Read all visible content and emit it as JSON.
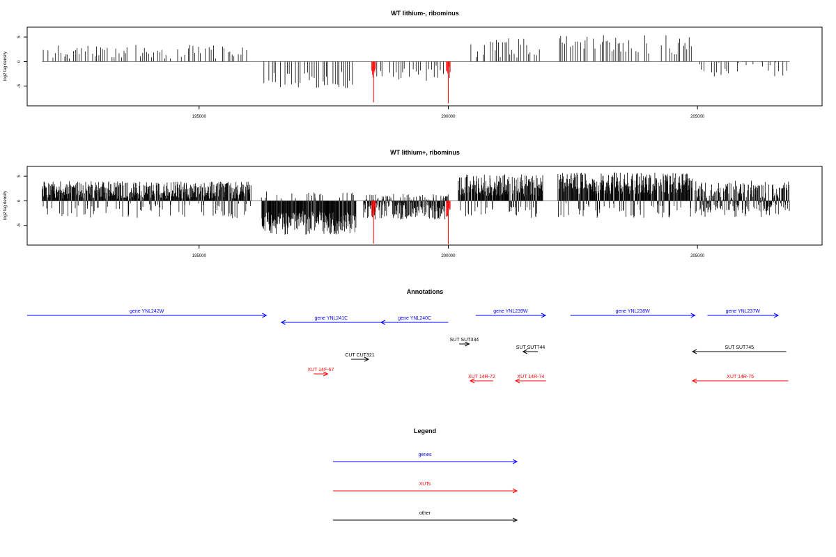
{
  "chart_data": [
    {
      "type": "bar",
      "title": "WT lithium-, ribominus",
      "ylabel": "log2 tag density",
      "xlabel": "",
      "xlim": [
        191550,
        207500
      ],
      "ylim": [
        -9,
        7
      ],
      "x_ticks": [
        195000,
        200000,
        205000
      ],
      "y_ticks": [
        5,
        0,
        -5
      ],
      "series_color": "#000000",
      "highlight_color": "#ff0000",
      "density": "sparse",
      "segments": [
        {
          "start": 191850,
          "end": 196050,
          "mean": 2.0,
          "amp": 1.4
        },
        {
          "start": 196300,
          "end": 198100,
          "mean": -3.6,
          "amp": 1.8
        },
        {
          "start": 198500,
          "end": 200000,
          "mean": -2.4,
          "amp": 1.6
        },
        {
          "start": 200400,
          "end": 201900,
          "mean": 2.8,
          "amp": 2.0
        },
        {
          "start": 202200,
          "end": 204900,
          "mean": 3.4,
          "amp": 2.0
        },
        {
          "start": 205000,
          "end": 206800,
          "mean": -1.5,
          "amp": 1.6
        }
      ],
      "red_bars": [
        {
          "x": 198500,
          "y": -8.3
        },
        {
          "x": 200000,
          "y": -8.5
        }
      ]
    },
    {
      "type": "bar",
      "title": "WT lithium+, ribominus",
      "ylabel": "log2 tag density",
      "xlabel": "",
      "xlim": [
        191550,
        207500
      ],
      "ylim": [
        -9,
        7
      ],
      "x_ticks": [
        195000,
        200000,
        205000
      ],
      "y_ticks": [
        5,
        0,
        -5
      ],
      "series_color": "#000000",
      "highlight_color": "#ff0000",
      "density": "dense",
      "segments": [
        {
          "start": 191850,
          "end": 196050,
          "mean": 2.2,
          "amp": 1.8
        },
        {
          "start": 196250,
          "end": 198150,
          "mean": -4.5,
          "amp": 2.4
        },
        {
          "start": 198300,
          "end": 200000,
          "mean": -1.2,
          "amp": 2.6
        },
        {
          "start": 200200,
          "end": 201900,
          "mean": 3.0,
          "amp": 2.4
        },
        {
          "start": 202200,
          "end": 204900,
          "mean": 3.6,
          "amp": 2.2
        },
        {
          "start": 204950,
          "end": 206850,
          "mean": 1.0,
          "amp": 3.2
        }
      ],
      "red_bars": [
        {
          "x": 198500,
          "y": -8.7
        },
        {
          "x": 200000,
          "y": -8.8
        }
      ]
    }
  ],
  "annotations": {
    "title": "Annotations",
    "items": [
      {
        "label": "gene YNL242W",
        "start": 191550,
        "end": 196350,
        "dir": "right",
        "color": "#0000ff",
        "row": 0
      },
      {
        "label": "gene YNL241C",
        "start": 196650,
        "end": 198650,
        "dir": "left",
        "color": "#0000ff",
        "row": 1
      },
      {
        "label": "gene YNL240C",
        "start": 198650,
        "end": 200000,
        "dir": "left",
        "color": "#0000ff",
        "row": 1
      },
      {
        "label": "gene YNL239W",
        "start": 200550,
        "end": 201950,
        "dir": "right",
        "color": "#0000ff",
        "row": 0
      },
      {
        "label": "gene YNL238W",
        "start": 202450,
        "end": 204950,
        "dir": "right",
        "color": "#0000ff",
        "row": 0
      },
      {
        "label": "gene YNL237W",
        "start": 205200,
        "end": 206620,
        "dir": "right",
        "color": "#0000ff",
        "row": 0
      },
      {
        "label": "SUT SUT334",
        "start": 200220,
        "end": 200420,
        "dir": "right",
        "color": "#000000",
        "row": 3
      },
      {
        "label": "SUT SUT744",
        "start": 201500,
        "end": 201800,
        "dir": "left",
        "color": "#000000",
        "row": 4
      },
      {
        "label": "SUT SUT745",
        "start": 204900,
        "end": 206780,
        "dir": "left",
        "color": "#000000",
        "row": 4
      },
      {
        "label": "CUT CUT321",
        "start": 198050,
        "end": 198400,
        "dir": "right",
        "color": "#000000",
        "row": 5
      },
      {
        "label": "XUT 14F-67",
        "start": 197300,
        "end": 197580,
        "dir": "right",
        "color": "#ff0000",
        "row": 6
      },
      {
        "label": "XUT 14R-72",
        "start": 200440,
        "end": 200900,
        "dir": "left",
        "color": "#ff0000",
        "row": 7
      },
      {
        "label": "XUT 14R-74",
        "start": 201350,
        "end": 201960,
        "dir": "left",
        "color": "#ff0000",
        "row": 7
      },
      {
        "label": "XUT 14R-75",
        "start": 204900,
        "end": 206820,
        "dir": "left",
        "color": "#ff0000",
        "row": 7
      }
    ]
  },
  "legend": {
    "title": "Legend",
    "items": [
      {
        "label": "genes",
        "color": "#0000ff"
      },
      {
        "label": "XUTs",
        "color": "#ff0000"
      },
      {
        "label": "other",
        "color": "#000000"
      }
    ]
  }
}
